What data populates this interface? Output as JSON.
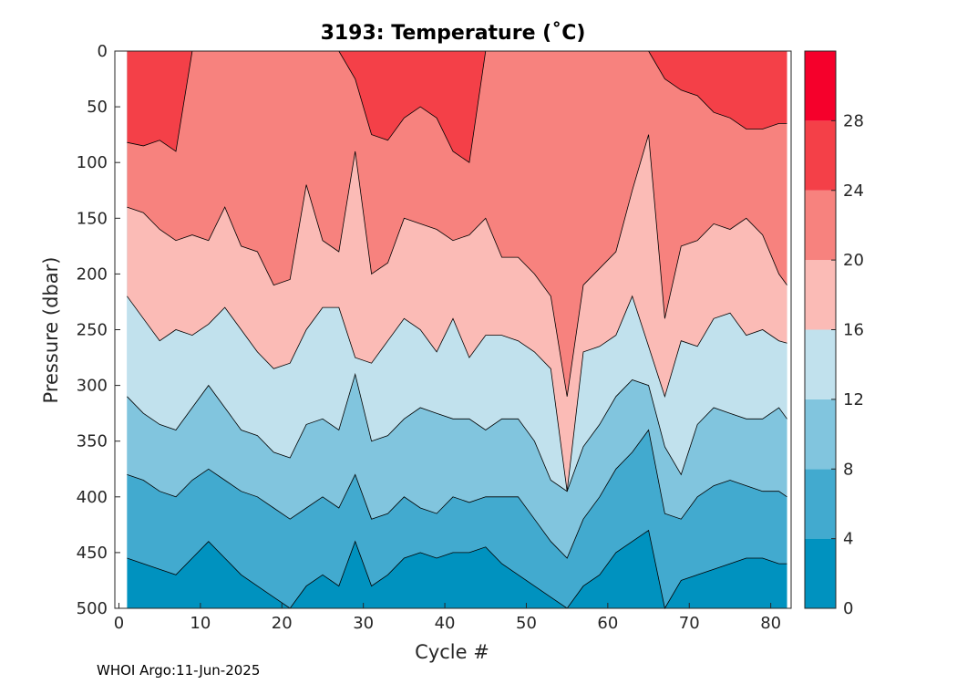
{
  "chart_data": {
    "type": "contourf",
    "title": "3193:  Temperature (˚C)",
    "xlabel": "Cycle #",
    "ylabel": "Pressure (dbar)",
    "xlim": [
      -0.5,
      82.5
    ],
    "ylim": [
      0,
      500
    ],
    "y_reversed": true,
    "x_ticks": [
      0,
      10,
      20,
      30,
      40,
      50,
      60,
      70,
      80
    ],
    "y_ticks": [
      0,
      50,
      100,
      150,
      200,
      250,
      300,
      350,
      400,
      450,
      500
    ],
    "colorbar": {
      "limits": [
        0,
        32
      ],
      "tick_values": [
        0,
        4,
        8,
        12,
        16,
        20,
        24,
        28
      ],
      "levels": [
        {
          "min": 0,
          "max": 4,
          "color": "#0092bf"
        },
        {
          "min": 4,
          "max": 8,
          "color": "#42aacf"
        },
        {
          "min": 8,
          "max": 12,
          "color": "#81c5de"
        },
        {
          "min": 12,
          "max": 16,
          "color": "#c1e1ed"
        },
        {
          "min": 16,
          "max": 20,
          "color": "#fbbbb6"
        },
        {
          "min": 20,
          "max": 24,
          "color": "#f7827e"
        },
        {
          "min": 24,
          "max": 28,
          "color": "#f44048"
        },
        {
          "min": 28,
          "max": 32,
          "color": "#f5002b"
        }
      ]
    },
    "isotherm_depths_dbar": {
      "x": [
        1,
        3,
        5,
        7,
        9,
        11,
        13,
        15,
        17,
        19,
        21,
        23,
        25,
        27,
        29,
        31,
        33,
        35,
        37,
        39,
        41,
        43,
        45,
        47,
        49,
        51,
        53,
        55,
        57,
        59,
        61,
        63,
        65,
        67,
        69,
        71,
        73,
        75,
        77,
        79,
        81,
        82
      ],
      "lines": [
        {
          "isotherm": 24,
          "depths": [
            82,
            85,
            80,
            90,
            0,
            0,
            0,
            0,
            0,
            0,
            0,
            0,
            0,
            0,
            25,
            75,
            80,
            60,
            50,
            60,
            90,
            100,
            0,
            0,
            0,
            0,
            0,
            0,
            0,
            0,
            0,
            0,
            0,
            25,
            35,
            40,
            55,
            60,
            70,
            70,
            65,
            65
          ]
        },
        {
          "isotherm": 20,
          "depths": [
            140,
            145,
            160,
            170,
            165,
            170,
            140,
            175,
            180,
            210,
            205,
            120,
            170,
            180,
            90,
            200,
            190,
            150,
            155,
            160,
            170,
            165,
            150,
            185,
            185,
            200,
            220,
            310,
            210,
            195,
            180,
            125,
            75,
            240,
            175,
            170,
            155,
            160,
            150,
            165,
            200,
            210
          ]
        },
        {
          "isotherm": 16,
          "depths": [
            220,
            240,
            260,
            250,
            255,
            245,
            230,
            250,
            270,
            285,
            280,
            250,
            230,
            230,
            275,
            280,
            260,
            240,
            250,
            270,
            240,
            275,
            255,
            255,
            260,
            270,
            285,
            395,
            270,
            265,
            255,
            220,
            265,
            310,
            260,
            265,
            240,
            235,
            255,
            250,
            260,
            262
          ]
        },
        {
          "isotherm": 12,
          "depths": [
            310,
            325,
            335,
            340,
            320,
            300,
            320,
            340,
            345,
            360,
            365,
            335,
            330,
            340,
            290,
            350,
            345,
            330,
            320,
            325,
            330,
            330,
            340,
            330,
            330,
            350,
            385,
            395,
            355,
            335,
            310,
            295,
            300,
            355,
            380,
            335,
            320,
            325,
            330,
            330,
            320,
            330
          ]
        },
        {
          "isotherm": 8,
          "depths": [
            380,
            385,
            395,
            400,
            385,
            375,
            385,
            395,
            400,
            410,
            420,
            410,
            400,
            410,
            380,
            420,
            415,
            400,
            410,
            415,
            400,
            405,
            400,
            400,
            400,
            420,
            440,
            455,
            420,
            400,
            375,
            360,
            340,
            415,
            420,
            400,
            390,
            385,
            390,
            395,
            395,
            400
          ]
        },
        {
          "isotherm": 4,
          "depths": [
            455,
            460,
            465,
            470,
            455,
            440,
            455,
            470,
            480,
            490,
            500,
            480,
            470,
            480,
            440,
            480,
            470,
            455,
            450,
            455,
            450,
            450,
            445,
            460,
            470,
            480,
            490,
            500,
            480,
            470,
            450,
            440,
            430,
            500,
            475,
            470,
            465,
            460,
            455,
            455,
            460,
            460
          ]
        }
      ]
    }
  },
  "footer": "WHOI Argo:11-Jun-2025"
}
